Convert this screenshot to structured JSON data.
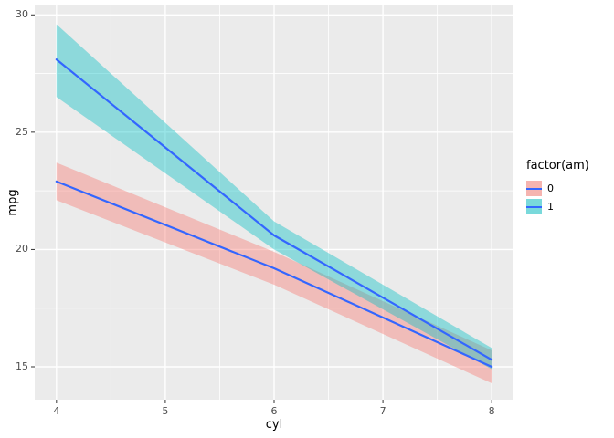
{
  "figure": {
    "background": "#FFFFFF",
    "panel_background": "#EBEBEB",
    "grid_color": "#FFFFFF",
    "axis_text_color": "#4D4D4D",
    "tick_mark_color": "#333333",
    "smooth_line_color": "#3366FF"
  },
  "axes": {
    "x_title": "cyl",
    "y_title": "mpg"
  },
  "legend": {
    "title": "factor(am)",
    "position": "right",
    "entries": [
      {
        "label": "0",
        "fill": "#F8766D"
      },
      {
        "label": "1",
        "fill": "#00BFC4"
      }
    ]
  },
  "chart_data": {
    "type": "line",
    "title": "",
    "xlabel": "cyl",
    "ylabel": "mpg",
    "xlim": [
      3.8,
      8.2
    ],
    "ylim": [
      13.6,
      30.4
    ],
    "x_ticks": [
      4,
      5,
      6,
      7,
      8
    ],
    "y_ticks": [
      15,
      20,
      25,
      30
    ],
    "x_minor": [
      4.5,
      5.5,
      6.5,
      7.5
    ],
    "y_minor": [
      17.5,
      22.5,
      27.5
    ],
    "grid": true,
    "legend_position": "right",
    "series": [
      {
        "name": "0",
        "fill": "#F8766D",
        "line_color": "#3366FF",
        "ribbon_alpha": 0.4,
        "x": [
          4,
          6,
          8
        ],
        "y": [
          22.9,
          19.2,
          15.0
        ],
        "ymin": [
          22.1,
          18.5,
          14.3
        ],
        "ymax": [
          23.7,
          19.9,
          15.7
        ]
      },
      {
        "name": "1",
        "fill": "#00BFC4",
        "line_color": "#3366FF",
        "ribbon_alpha": 0.4,
        "x": [
          4,
          6,
          8
        ],
        "y": [
          28.1,
          20.6,
          15.3
        ],
        "ymin": [
          26.5,
          20.0,
          14.9
        ],
        "ymax": [
          29.6,
          21.2,
          15.8
        ]
      }
    ]
  }
}
